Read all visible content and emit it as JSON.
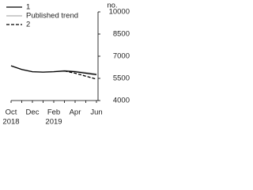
{
  "chart_data": {
    "type": "line",
    "y_axis_label": "no.",
    "categories": [
      "Oct",
      null,
      "Dec",
      null,
      "Feb",
      null,
      "Apr",
      null,
      "Jun"
    ],
    "years": [
      "2018",
      null,
      null,
      null,
      "2019",
      null,
      null,
      null,
      null
    ],
    "series": [
      {
        "name": "1",
        "color": "#000000",
        "dash": false,
        "values": [
          6350,
          6100,
          5950,
          5920,
          5950,
          6000,
          5950,
          5850,
          5750
        ]
      },
      {
        "name": "Published trend",
        "color": "#b0b0b0",
        "dash": false,
        "values": [
          6350,
          6100,
          5950,
          5930,
          5960,
          6020,
          5980,
          5900,
          5800
        ]
      },
      {
        "name": "2",
        "color": "#000000",
        "dash": true,
        "values": [
          null,
          null,
          null,
          null,
          null,
          6000,
          5850,
          5650,
          5450
        ]
      }
    ],
    "ylim": [
      4000,
      10000
    ],
    "yticks": [
      4000,
      5500,
      7000,
      8500,
      10000
    ]
  }
}
